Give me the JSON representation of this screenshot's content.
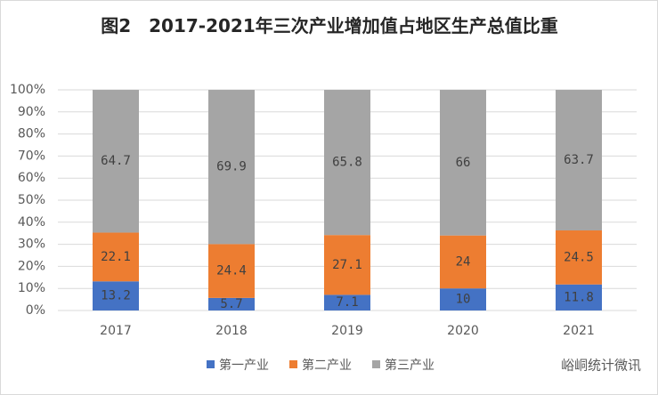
{
  "chart_data": {
    "type": "stacked_bar",
    "title": "图2　2017-2021年三次产业增加值占地区生产总值比重",
    "categories": [
      "2017",
      "2018",
      "2019",
      "2020",
      "2021"
    ],
    "series": [
      {
        "name": "第一产业",
        "color": "#4472c4",
        "values": [
          13.2,
          5.7,
          7.1,
          10,
          11.8
        ]
      },
      {
        "name": "第二产业",
        "color": "#ed7d31",
        "values": [
          22.1,
          24.4,
          27.1,
          24,
          24.5
        ]
      },
      {
        "name": "第三产业",
        "color": "#a5a5a5",
        "values": [
          64.7,
          69.9,
          65.8,
          66,
          63.7
        ]
      }
    ],
    "ylim": [
      0,
      100
    ],
    "yticks": [
      {
        "value": 0,
        "label": "0%"
      },
      {
        "value": 10,
        "label": "10%"
      },
      {
        "value": 20,
        "label": "20%"
      },
      {
        "value": 30,
        "label": "30%"
      },
      {
        "value": 40,
        "label": "40%"
      },
      {
        "value": 50,
        "label": "50%"
      },
      {
        "value": 60,
        "label": "60%"
      },
      {
        "value": 70,
        "label": "70%"
      },
      {
        "value": 80,
        "label": "80%"
      },
      {
        "value": 90,
        "label": "90%"
      },
      {
        "value": 100,
        "label": "100%"
      }
    ],
    "grid": true,
    "legend": "bottom",
    "watermark": "峪峒统计微讯"
  }
}
